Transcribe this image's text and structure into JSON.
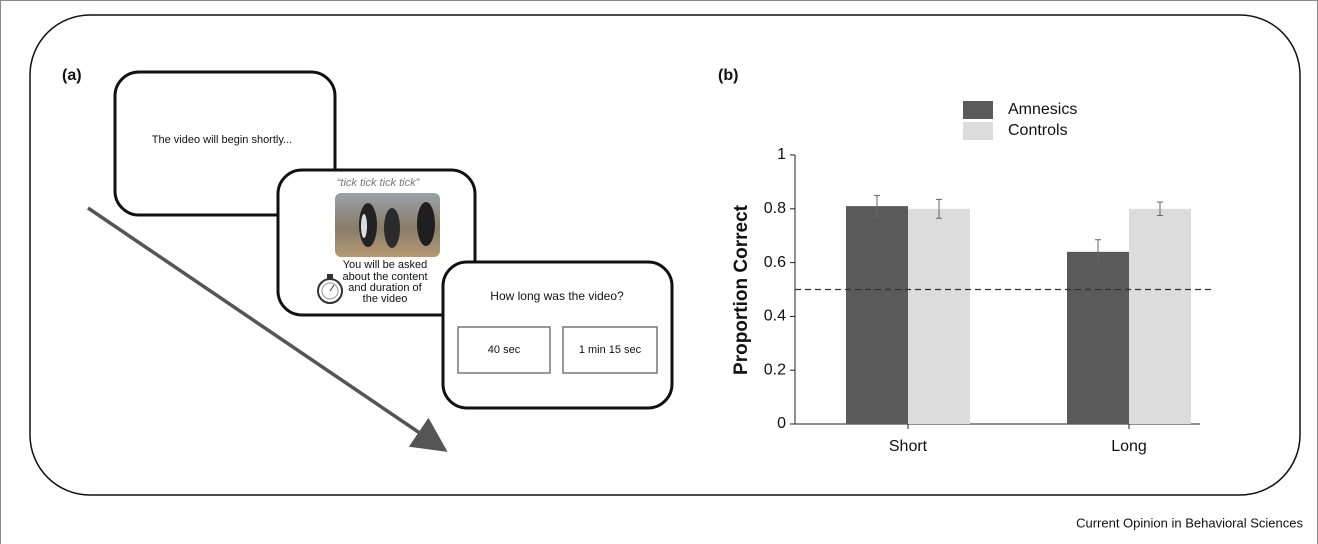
{
  "panel_a": {
    "label": "(a)",
    "screens": [
      {
        "text": "The video will begin shortly..."
      },
      {
        "caption": "“tick tick tick tick”",
        "text": [
          "You will be asked",
          "about the content",
          "and duration of",
          "the video"
        ]
      },
      {
        "question": "How long was the video?",
        "options": [
          "40 sec",
          "1 min 15 sec"
        ]
      }
    ]
  },
  "chart_data": {
    "type": "bar",
    "panel_label": "(b)",
    "ylabel": "Proportion Correct",
    "categories": [
      "Short",
      "Long"
    ],
    "series": [
      {
        "name": "Amnesics",
        "color": "#5a5a5a",
        "values": [
          0.81,
          0.64
        ],
        "errors": [
          0.04,
          0.045
        ]
      },
      {
        "name": "Controls",
        "color": "#dcdcdc",
        "values": [
          0.8,
          0.8
        ],
        "errors": [
          0.035,
          0.025
        ]
      }
    ],
    "ylim": [
      0,
      1
    ],
    "yticks": [
      0,
      0.2,
      0.4,
      0.6,
      0.8,
      1
    ],
    "grid": false,
    "legend": "top",
    "reference_line": 0.5
  },
  "footer": "Current Opinion in Behavioral Sciences"
}
